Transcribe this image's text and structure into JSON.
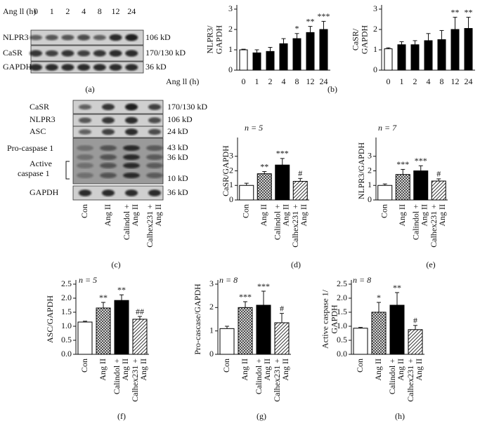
{
  "blot_a": {
    "header": "Ang ll (h)",
    "lanes": [
      "0",
      "1",
      "2",
      "4",
      "8",
      "12",
      "24"
    ],
    "rows": [
      {
        "name": "NLPR3",
        "size": "106 kD"
      },
      {
        "name": "CaSR",
        "size": "170/130 kD"
      },
      {
        "name": "GAPDH",
        "size": "36 kD"
      }
    ],
    "panel_label": "(a)"
  },
  "blot_c": {
    "lanes": [
      [
        "Con"
      ],
      [
        "Ang II"
      ],
      [
        "Calindol +",
        "Ang II"
      ],
      [
        "Calhex231 +",
        "Ang II"
      ]
    ],
    "rows": [
      {
        "name": "CaSR",
        "size": "170/130 kD"
      },
      {
        "name": "NLPR3",
        "size": "106 kD"
      },
      {
        "name": "ASC",
        "size": "24 kD"
      },
      {
        "name": "Pro-caspase 1",
        "sizes": [
          "43 kD",
          "36 kD"
        ]
      },
      {
        "name": [
          "Active",
          "caspase 1"
        ],
        "size": "10 kD"
      },
      {
        "name": "GAPDH",
        "size": "36 kD"
      }
    ],
    "panel_label": "(c)"
  },
  "chart_data": [
    {
      "type": "bar",
      "panel_label": "(b)",
      "ylabel": [
        "NLPR3/",
        "GAPDH"
      ],
      "xlabel": "Ang ll (h)",
      "categories": [
        [
          "0"
        ],
        [
          "1"
        ],
        [
          "2"
        ],
        [
          "4"
        ],
        [
          "8"
        ],
        [
          "12"
        ],
        [
          "24"
        ]
      ],
      "values": [
        1.0,
        0.85,
        0.92,
        1.3,
        1.55,
        1.85,
        2.0
      ],
      "errors": [
        0.03,
        0.15,
        0.2,
        0.25,
        0.25,
        0.3,
        0.4
      ],
      "annotations": [
        null,
        null,
        null,
        null,
        "*",
        "**",
        "***"
      ],
      "bar_styles": [
        "white",
        "black",
        "black",
        "black",
        "black",
        "black",
        "black"
      ],
      "ylim": [
        0,
        3
      ],
      "yticks": [
        0,
        1,
        2,
        3
      ]
    },
    {
      "type": "bar",
      "ylabel": [
        "CaSR/",
        "GAPDH"
      ],
      "categories": [
        [
          "0"
        ],
        [
          "1"
        ],
        [
          "2"
        ],
        [
          "4"
        ],
        [
          "8"
        ],
        [
          "12"
        ],
        [
          "24"
        ]
      ],
      "values": [
        1.05,
        1.25,
        1.25,
        1.45,
        1.5,
        2.0,
        2.05
      ],
      "errors": [
        0.05,
        0.15,
        0.2,
        0.35,
        0.45,
        0.6,
        0.55
      ],
      "annotations": [
        null,
        null,
        null,
        null,
        null,
        "**",
        "**"
      ],
      "bar_styles": [
        "white",
        "black",
        "black",
        "black",
        "black",
        "black",
        "black"
      ],
      "ylim": [
        0,
        3
      ],
      "yticks": [
        0,
        1,
        2,
        3
      ]
    },
    {
      "type": "bar",
      "panel_label": "(d)",
      "n_label": "n = 5",
      "ylabel": [
        "CaSR/GAPDH"
      ],
      "categories": [
        [
          "Con"
        ],
        [
          "Ang II"
        ],
        [
          "Calindol +",
          "Ang II"
        ],
        [
          "Calhex231 +",
          "Ang II"
        ]
      ],
      "values": [
        1.0,
        1.8,
        2.4,
        1.28
      ],
      "errors": [
        0.15,
        0.15,
        0.45,
        0.2
      ],
      "annotations": [
        null,
        "**",
        "***",
        "#"
      ],
      "bar_styles": [
        "white",
        "crosshatch",
        "black",
        "diagonal"
      ],
      "ylim": [
        0,
        4
      ],
      "yticks": [
        0,
        1,
        2,
        3
      ]
    },
    {
      "type": "bar",
      "panel_label": "(e)",
      "n_label": "n = 7",
      "ylabel": [
        "NLPR3/GAPDH"
      ],
      "categories": [
        [
          "Con"
        ],
        [
          "Ang II"
        ],
        [
          "Calindol +",
          "Ang II"
        ],
        [
          "Calhex231 +",
          "Ang II"
        ]
      ],
      "values": [
        1.0,
        1.75,
        2.0,
        1.3
      ],
      "errors": [
        0.1,
        0.35,
        0.35,
        0.15
      ],
      "annotations": [
        null,
        "***",
        "***",
        "#"
      ],
      "bar_styles": [
        "white",
        "crosshatch",
        "black",
        "diagonal"
      ],
      "ylim": [
        0,
        4
      ],
      "yticks": [
        0,
        1,
        2,
        3
      ]
    },
    {
      "type": "bar",
      "panel_label": "(f)",
      "n_label": "n = 5",
      "ylabel": [
        "ASC/GAPDH"
      ],
      "categories": [
        [
          "Con"
        ],
        [
          "Ang II"
        ],
        [
          "Calindol +",
          "Ang II"
        ],
        [
          "Calhex231 +",
          "Ang II"
        ]
      ],
      "values": [
        1.15,
        1.65,
        1.92,
        1.25
      ],
      "errors": [
        0.03,
        0.2,
        0.2,
        0.1
      ],
      "annotations": [
        null,
        "**",
        "**",
        "##"
      ],
      "bar_styles": [
        "white",
        "crosshatch",
        "black",
        "diagonal"
      ],
      "ylim": [
        0,
        2.5
      ],
      "yticks": [
        {
          "value": 0,
          "label": "0.0"
        },
        0.5,
        {
          "value": 1,
          "label": "1.0"
        },
        1.5,
        {
          "value": 2,
          "label": "2.0"
        },
        2.5
      ]
    },
    {
      "type": "bar",
      "panel_label": "(g)",
      "n_label": "n = 8",
      "ylabel": [
        "Pro-cascase/GAPDH"
      ],
      "categories": [
        [
          "Con"
        ],
        [
          "Ang II"
        ],
        [
          "Calindol +",
          "Ang II"
        ],
        [
          "Calhex231 +",
          "Ang II"
        ]
      ],
      "values": [
        1.1,
        2.0,
        2.1,
        1.35
      ],
      "errors": [
        0.1,
        0.25,
        0.6,
        0.4
      ],
      "annotations": [
        null,
        "***",
        "***",
        "#"
      ],
      "bar_styles": [
        "white",
        "crosshatch",
        "black",
        "diagonal"
      ],
      "ylim": [
        0,
        3
      ],
      "yticks": [
        0,
        1,
        2,
        3
      ]
    },
    {
      "type": "bar",
      "panel_label": "(h)",
      "n_label": "n = 8",
      "ylabel": [
        "Active caspase 1/",
        "GAPDH"
      ],
      "categories": [
        [
          "Con"
        ],
        [
          "Ang II"
        ],
        [
          "Calindol +",
          "Ang II"
        ],
        [
          "Calhex231 +",
          "Ang II"
        ]
      ],
      "values": [
        0.93,
        1.5,
        1.75,
        0.88
      ],
      "errors": [
        0.03,
        0.35,
        0.45,
        0.15
      ],
      "annotations": [
        null,
        "*",
        "**",
        "#"
      ],
      "bar_styles": [
        "white",
        "crosshatch",
        "black",
        "diagonal"
      ],
      "ylim": [
        0,
        2.5
      ],
      "yticks": [
        {
          "value": 0,
          "label": "0.0"
        },
        0.5,
        {
          "value": 1,
          "label": "1.0"
        },
        1.5,
        {
          "value": 2,
          "label": "2.0"
        },
        2.5
      ]
    }
  ]
}
